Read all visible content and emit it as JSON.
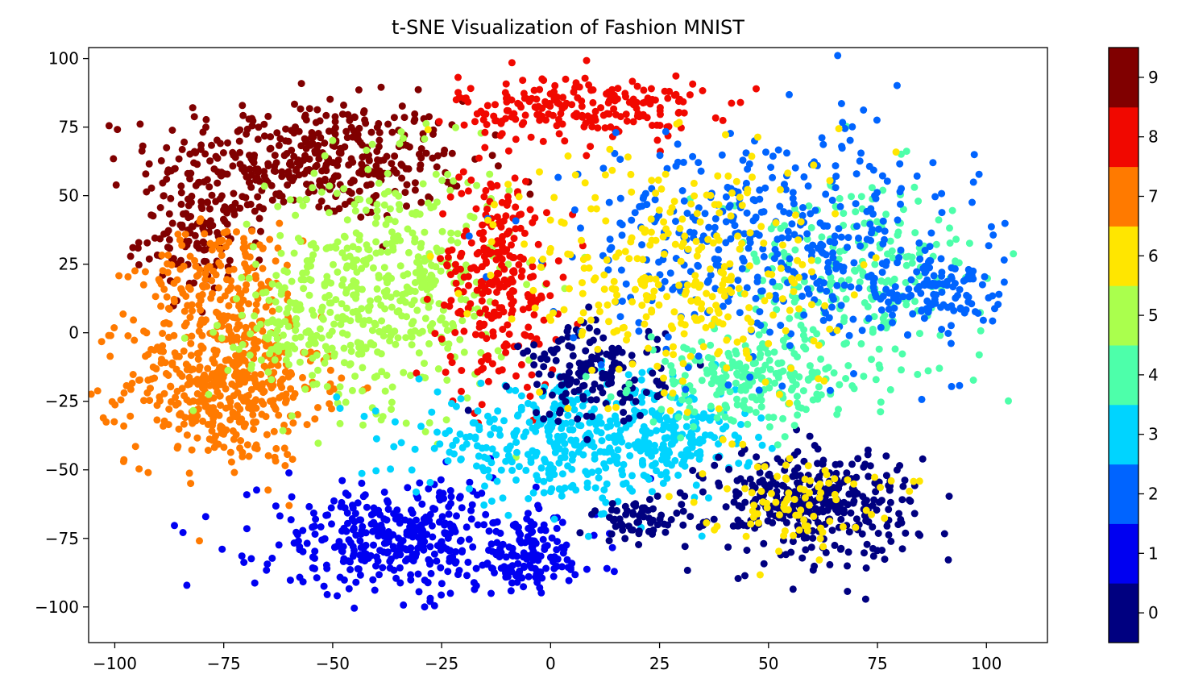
{
  "chart_data": {
    "type": "scatter",
    "title": "t-SNE Visualization of Fashion MNIST",
    "xlabel": "",
    "ylabel": "",
    "xlim": [
      -106,
      114
    ],
    "ylim": [
      -113,
      104
    ],
    "xticks": [
      -100,
      -75,
      -50,
      -25,
      0,
      25,
      50,
      75,
      100
    ],
    "yticks": [
      -100,
      -75,
      -50,
      -25,
      0,
      25,
      50,
      75,
      100
    ],
    "grid": false,
    "colormap": "jet (discrete, 10 levels)",
    "colorbar": {
      "labels": [
        "0",
        "1",
        "2",
        "3",
        "4",
        "5",
        "6",
        "7",
        "8",
        "9"
      ],
      "colors": [
        "#000080",
        "#0000f1",
        "#0064ff",
        "#00d4ff",
        "#4dffaa",
        "#aaff4d",
        "#ffe600",
        "#ff7a00",
        "#f10800",
        "#800000"
      ],
      "placement": "right"
    },
    "clusters": [
      {
        "label": "9",
        "color": "#800000",
        "center": [
          -55,
          63
        ],
        "spread": [
          18,
          11
        ],
        "count": 420
      },
      {
        "label": "9",
        "color": "#800000",
        "center": [
          -80,
          35
        ],
        "spread": [
          7,
          10
        ],
        "count": 130
      },
      {
        "label": "7",
        "color": "#ff7a00",
        "center": [
          -75,
          -18
        ],
        "spread": [
          11,
          15
        ],
        "count": 500
      },
      {
        "label": "7",
        "color": "#ff7a00",
        "center": [
          -75,
          22
        ],
        "spread": [
          9,
          9
        ],
        "count": 140
      },
      {
        "label": "5",
        "color": "#aaff4d",
        "center": [
          -37,
          18
        ],
        "spread": [
          14,
          22
        ],
        "count": 480
      },
      {
        "label": "5",
        "color": "#aaff4d",
        "center": [
          -60,
          0
        ],
        "spread": [
          8,
          8
        ],
        "count": 100
      },
      {
        "label": "8",
        "color": "#f10800",
        "center": [
          7,
          82
        ],
        "spread": [
          14,
          6
        ],
        "count": 220
      },
      {
        "label": "8",
        "color": "#f10800",
        "center": [
          -12,
          20
        ],
        "spread": [
          7,
          20
        ],
        "count": 260
      },
      {
        "label": "1",
        "color": "#0000f1",
        "center": [
          -35,
          -75
        ],
        "spread": [
          16,
          10
        ],
        "count": 380
      },
      {
        "label": "1",
        "color": "#0000f1",
        "center": [
          -5,
          -82
        ],
        "spread": [
          8,
          7
        ],
        "count": 120
      },
      {
        "label": "3",
        "color": "#00d4ff",
        "center": [
          5,
          -40
        ],
        "spread": [
          18,
          10
        ],
        "count": 420
      },
      {
        "label": "3",
        "color": "#00d4ff",
        "center": [
          30,
          -38
        ],
        "spread": [
          8,
          8
        ],
        "count": 100
      },
      {
        "label": "0",
        "color": "#000080",
        "center": [
          60,
          -62
        ],
        "spread": [
          12,
          10
        ],
        "count": 360
      },
      {
        "label": "0",
        "color": "#000080",
        "center": [
          10,
          -15
        ],
        "spread": [
          8,
          9
        ],
        "count": 160
      },
      {
        "label": "0",
        "color": "#000080",
        "center": [
          20,
          -68
        ],
        "spread": [
          5,
          4
        ],
        "count": 60
      },
      {
        "label": "4",
        "color": "#4dffaa",
        "center": [
          45,
          -18
        ],
        "spread": [
          12,
          8
        ],
        "count": 220
      },
      {
        "label": "4",
        "color": "#4dffaa",
        "center": [
          70,
          20
        ],
        "spread": [
          15,
          18
        ],
        "count": 240
      },
      {
        "label": "2",
        "color": "#0064ff",
        "center": [
          50,
          35
        ],
        "spread": [
          22,
          20
        ],
        "count": 420
      },
      {
        "label": "2",
        "color": "#0064ff",
        "center": [
          88,
          15
        ],
        "spread": [
          8,
          8
        ],
        "count": 120
      },
      {
        "label": "6",
        "color": "#ffe600",
        "center": [
          30,
          20
        ],
        "spread": [
          18,
          25
        ],
        "count": 320
      },
      {
        "label": "6",
        "color": "#ffe600",
        "center": [
          55,
          -60
        ],
        "spread": [
          10,
          8
        ],
        "count": 90
      }
    ]
  }
}
